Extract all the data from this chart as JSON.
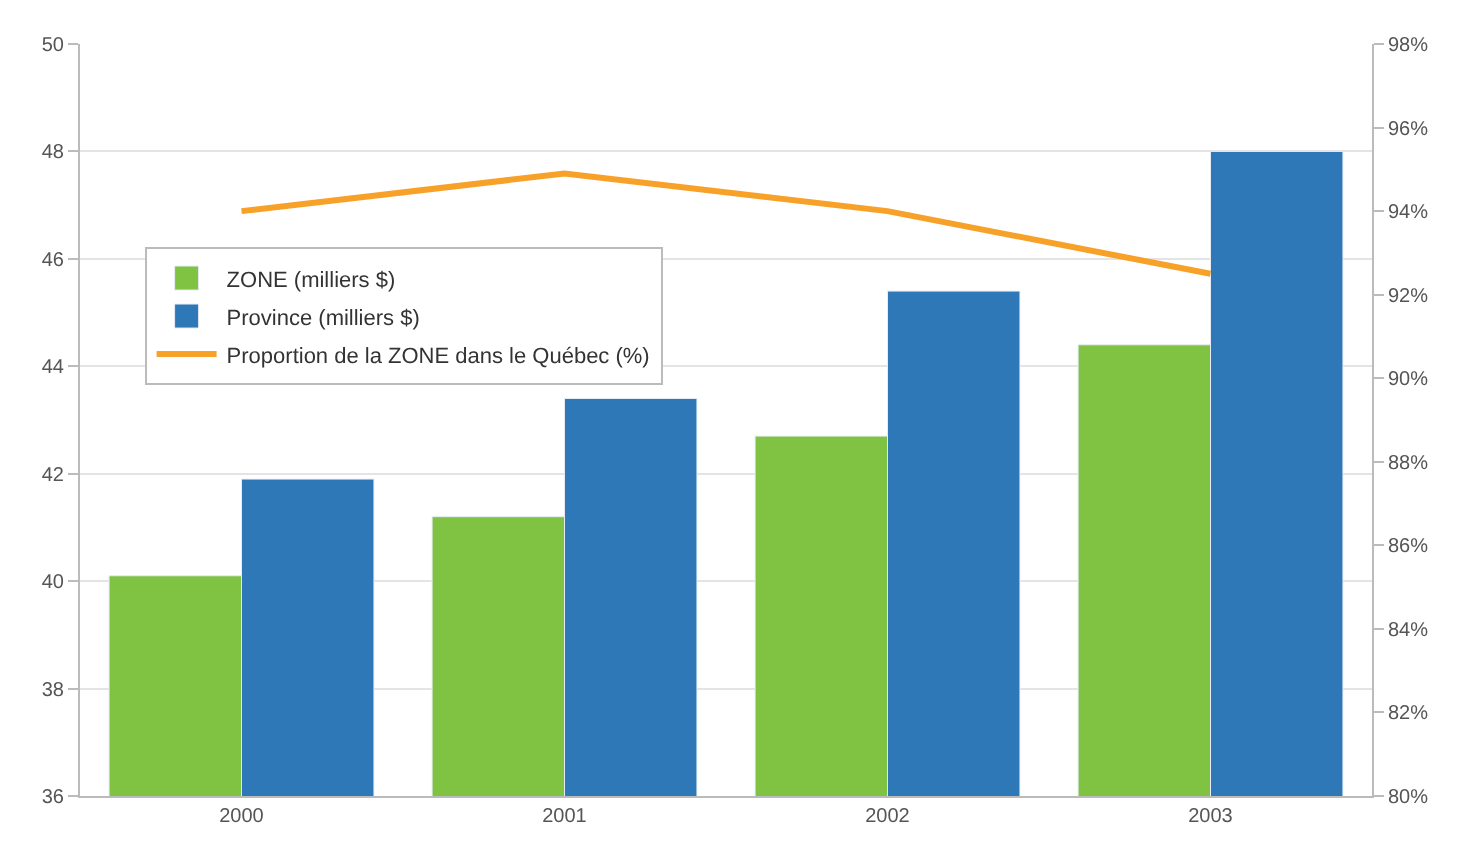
{
  "chart_data": {
    "type": "bar",
    "categories": [
      "2000",
      "2001",
      "2002",
      "2003"
    ],
    "series": [
      {
        "name": "ZONE (milliers $)",
        "color": "#80c342",
        "values": [
          40.1,
          41.2,
          42.7,
          44.4
        ]
      },
      {
        "name": "Province (milliers $)",
        "color": "#2e78b7",
        "values": [
          41.9,
          43.4,
          45.4,
          48.0
        ]
      },
      {
        "name": "Proportion de la ZONE dans le Québec (%)",
        "type": "line",
        "axis": "y2",
        "color": "#f7a128",
        "values": [
          94.0,
          94.9,
          94.0,
          92.5
        ]
      }
    ],
    "ylim": [
      36,
      50
    ],
    "yticks": [
      36,
      38,
      40,
      42,
      44,
      46,
      48,
      50
    ],
    "y2lim": [
      80,
      98
    ],
    "y2ticks": [
      {
        "value": 80,
        "label": "80%"
      },
      {
        "value": 82,
        "label": "82%"
      },
      {
        "value": 84,
        "label": "84%"
      },
      {
        "value": 86,
        "label": "86%"
      },
      {
        "value": 88,
        "label": "88%"
      },
      {
        "value": 90,
        "label": "90%"
      },
      {
        "value": 92,
        "label": "92%"
      },
      {
        "value": 94,
        "label": "94%"
      },
      {
        "value": 96,
        "label": "96%"
      },
      {
        "value": 98,
        "label": "98%"
      }
    ],
    "grid": "y",
    "legend": "left",
    "marker": "none",
    "line_style": "solid"
  }
}
